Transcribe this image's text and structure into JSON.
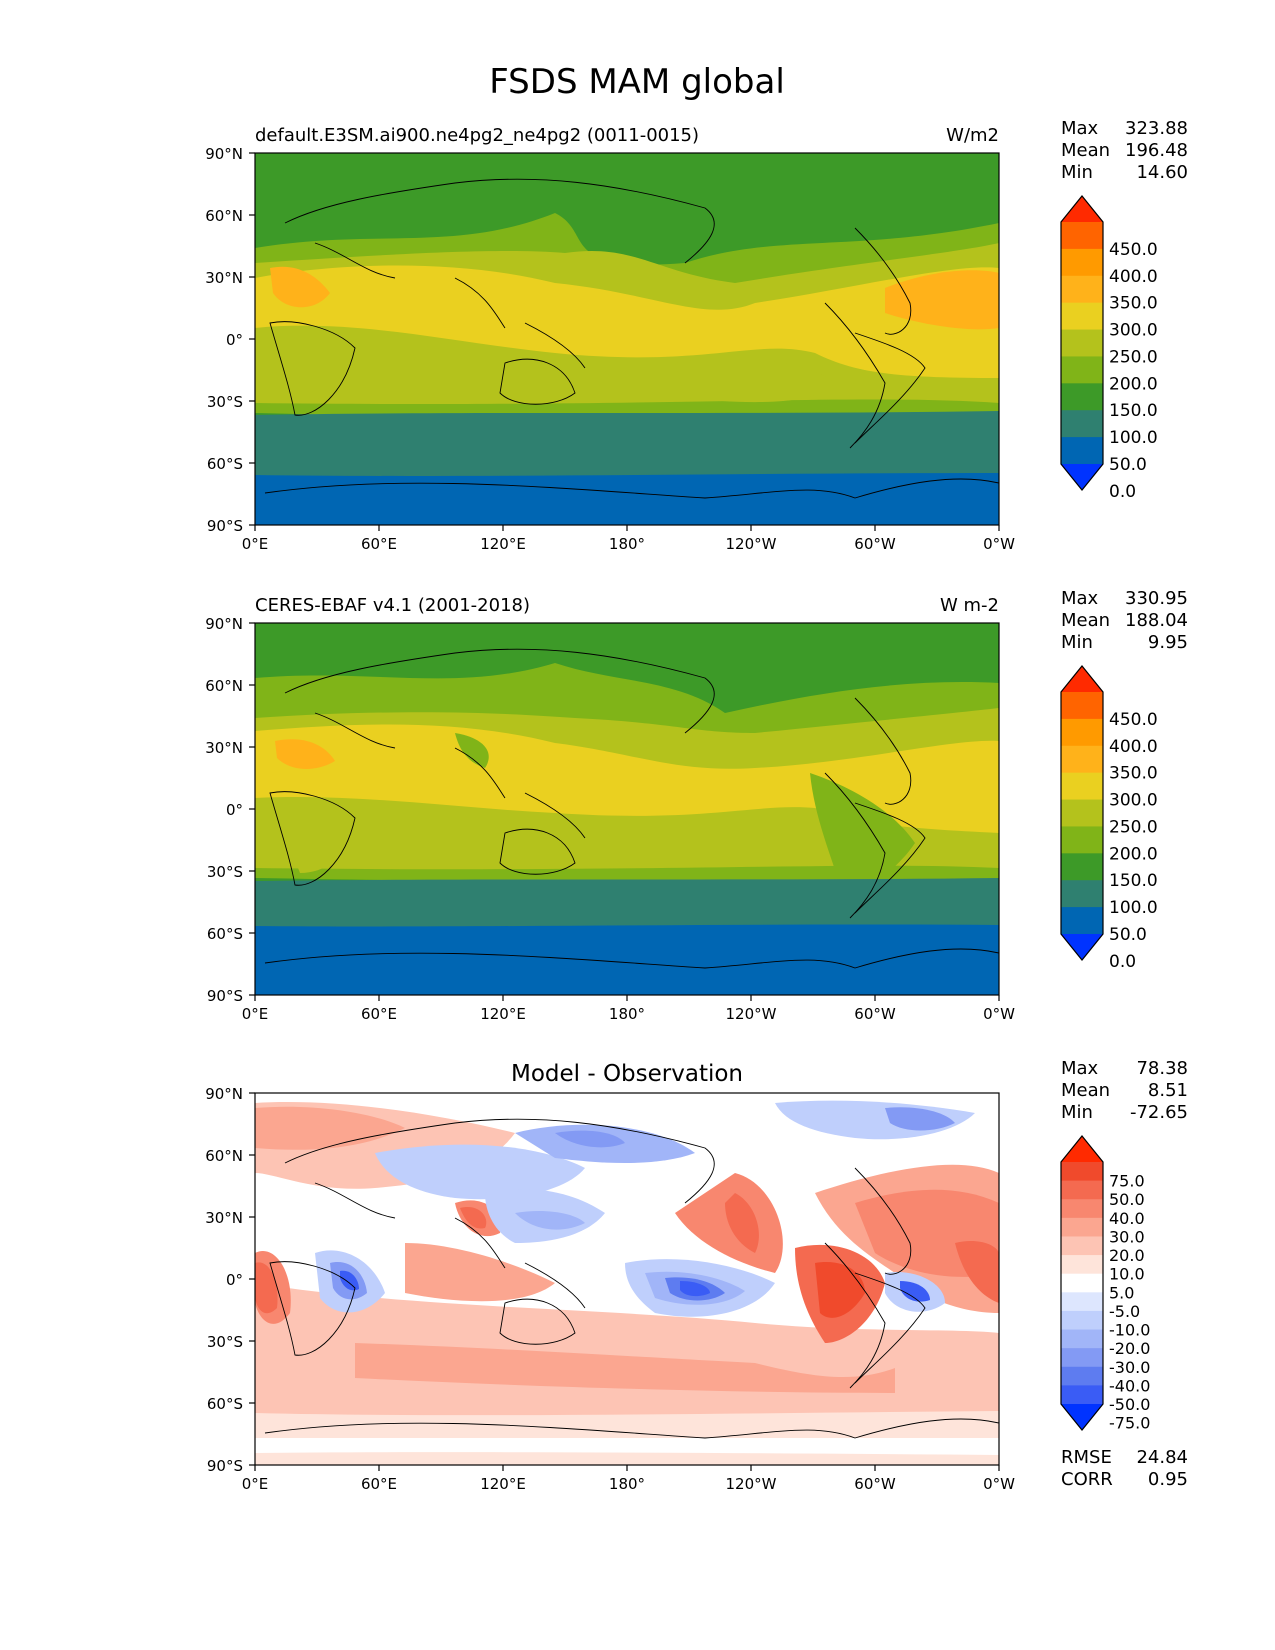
{
  "figure_title": "FSDS MAM global",
  "lat_ticks": [
    "90°N",
    "60°N",
    "30°N",
    "0°",
    "30°S",
    "60°S",
    "90°S"
  ],
  "lon_ticks": [
    "0°E",
    "60°E",
    "120°E",
    "180°",
    "120°W",
    "60°W",
    "0°W"
  ],
  "colorbar_abs": {
    "labels": [
      "450.0",
      "400.0",
      "350.0",
      "300.0",
      "250.0",
      "200.0",
      "150.0",
      "100.0",
      "50.0",
      "0.0"
    ],
    "colors": [
      "#ff2a00",
      "#ff6400",
      "#ff9a00",
      "#ffb21a",
      "#ead020",
      "#b4c21c",
      "#80b418",
      "#3d9a28",
      "#2f8070",
      "#0066b3",
      "#0033ff"
    ]
  },
  "colorbar_diff": {
    "labels": [
      "75.0",
      "50.0",
      "40.0",
      "30.0",
      "20.0",
      "10.0",
      "5.0",
      "-5.0",
      "-10.0",
      "-20.0",
      "-30.0",
      "-40.0",
      "-50.0",
      "-75.0"
    ],
    "colors": [
      "#ff2a00",
      "#f04a2c",
      "#f46a50",
      "#f8876f",
      "#fba690",
      "#fdc4b4",
      "#fee4da",
      "#ffffff",
      "#dde6fe",
      "#bfcffc",
      "#a1b5f8",
      "#839af4",
      "#5e7cf0",
      "#3a5cf5",
      "#0033ff"
    ]
  },
  "panels": [
    {
      "title": "default.E3SM.ai900.ne4pg2_ne4pg2 (0011-0015)",
      "units": "W/m2",
      "stats": {
        "max_label": "Max",
        "max": "323.88",
        "mean_label": "Mean",
        "mean": "196.48",
        "min_label": "Min",
        "min": "14.60"
      }
    },
    {
      "title": "CERES-EBAF v4.1 (2001-2018)",
      "units": "W m-2",
      "stats": {
        "max_label": "Max",
        "max": "330.95",
        "mean_label": "Mean",
        "mean": "188.04",
        "min_label": "Min",
        "min": "9.95"
      }
    },
    {
      "title": "Model - Observation",
      "units": "",
      "stats": {
        "max_label": "Max",
        "max": "78.38",
        "mean_label": "Mean",
        "mean": "8.51",
        "min_label": "Min",
        "min": "-72.65"
      },
      "metrics": {
        "rmse_label": "RMSE",
        "rmse": "24.84",
        "corr_label": "CORR",
        "corr": "0.95"
      }
    }
  ]
}
